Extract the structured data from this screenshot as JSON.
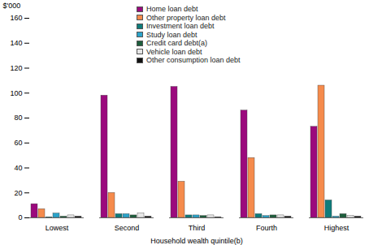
{
  "chart_data": {
    "type": "bar",
    "x_label": "Household wealth quintile(b)",
    "y_label": "$'000",
    "categories": [
      "Lowest",
      "Second",
      "Third",
      "Fourth",
      "Highest"
    ],
    "series": [
      {
        "name": "Home loan debt",
        "color": "#9b0a7d",
        "values": [
          11,
          98,
          105,
          86,
          73
        ]
      },
      {
        "name": "Other property loan debt",
        "color": "#f58b4c",
        "values": [
          7,
          20,
          29,
          48,
          106
        ]
      },
      {
        "name": "Investment loan debt",
        "color": "#0e7c7b",
        "values": [
          0.5,
          3,
          2,
          3,
          14
        ]
      },
      {
        "name": "Study loan debt",
        "color": "#2ba3c9",
        "values": [
          3.5,
          3,
          2,
          1.5,
          1
        ]
      },
      {
        "name": "Credit card debt(a)",
        "color": "#1d5e3c",
        "values": [
          1,
          2,
          1.5,
          2,
          3
        ]
      },
      {
        "name": "Vehicle loan debt",
        "color": "#e6e6e6",
        "values": [
          2,
          3.5,
          2,
          2,
          1.5
        ]
      },
      {
        "name": "Other consumption loan debt",
        "color": "#111111",
        "values": [
          1,
          1,
          0.5,
          1,
          1
        ]
      }
    ],
    "ylim": [
      0,
      160
    ],
    "yticks": [
      0,
      20,
      40,
      60,
      80,
      100,
      120,
      140,
      160
    ],
    "grid": false,
    "legend": "top"
  }
}
